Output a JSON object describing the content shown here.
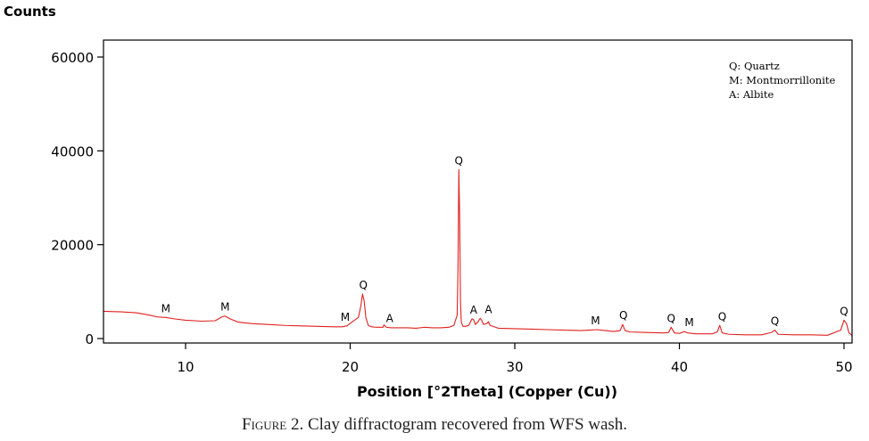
{
  "chart_data": {
    "type": "line",
    "ylabel": "Counts",
    "xlabel": "Position [°2Theta] (Copper (Cu))",
    "xlim": [
      5,
      50.8
    ],
    "ylim": [
      0,
      62000
    ],
    "x_ticks": [
      10,
      20,
      30,
      40,
      50
    ],
    "y_ticks": [
      0,
      20000,
      40000,
      60000
    ],
    "grid": false,
    "line_color": "#e0201e",
    "series": [
      {
        "x": [
          5,
          6,
          7,
          7.8,
          8.3,
          8.8,
          9.3,
          10,
          11,
          11.8,
          12.2,
          12.4,
          12.7,
          13.2,
          14,
          15,
          16,
          17,
          18,
          19,
          19.5,
          19.8,
          20.1,
          20.5,
          20.65,
          20.75,
          20.85,
          20.95,
          21.1,
          21.3,
          21.6,
          22,
          22.05,
          22.2,
          22.5,
          23,
          23.5,
          24,
          24.5,
          25,
          25.5,
          26,
          26.3,
          26.5,
          26.55,
          26.6,
          26.65,
          26.7,
          26.75,
          26.85,
          27,
          27.2,
          27.4,
          27.5,
          27.6,
          27.75,
          27.9,
          28.0,
          28.1,
          28.3,
          28.4,
          28.5,
          29,
          30,
          31,
          32,
          33,
          34,
          34.5,
          35,
          35.5,
          36,
          36.4,
          36.55,
          36.7,
          37,
          38,
          39,
          39.35,
          39.5,
          39.7,
          40,
          40.3,
          40.5,
          41,
          42,
          42.3,
          42.45,
          42.6,
          43,
          44,
          45,
          45.6,
          45.8,
          46,
          47,
          48,
          49,
          49.8,
          50,
          50.15,
          50.3,
          50.5,
          50.8
        ],
        "y": [
          5800,
          5700,
          5500,
          5000,
          4600,
          4500,
          4200,
          3900,
          3700,
          3800,
          4600,
          4800,
          4200,
          3500,
          3200,
          3000,
          2800,
          2700,
          2600,
          2500,
          2500,
          2700,
          3500,
          4500,
          7000,
          9500,
          8000,
          4500,
          2800,
          2500,
          2400,
          2400,
          2900,
          2400,
          2300,
          2300,
          2300,
          2200,
          2400,
          2300,
          2300,
          2400,
          2800,
          5000,
          15000,
          36000,
          26000,
          8000,
          3500,
          2600,
          2600,
          2800,
          4200,
          4000,
          3000,
          3500,
          4300,
          3800,
          3000,
          3200,
          3600,
          2800,
          2200,
          2100,
          2000,
          1900,
          1800,
          1700,
          1800,
          1900,
          1700,
          1500,
          1700,
          3000,
          1700,
          1400,
          1300,
          1200,
          1300,
          2400,
          1200,
          1100,
          1500,
          1200,
          1000,
          1000,
          1400,
          2800,
          1200,
          900,
          800,
          800,
          1300,
          1800,
          900,
          800,
          800,
          700,
          1800,
          3900,
          3200,
          1200,
          700,
          600
        ]
      }
    ],
    "annotations": [
      {
        "x": 8.8,
        "y": 4500,
        "text": "M"
      },
      {
        "x": 12.4,
        "y": 4800,
        "text": "M"
      },
      {
        "x": 19.7,
        "y": 2700,
        "text": "M"
      },
      {
        "x": 20.8,
        "y": 9500,
        "text": "Q"
      },
      {
        "x": 22.4,
        "y": 2400,
        "text": "A"
      },
      {
        "x": 26.6,
        "y": 36000,
        "text": "Q"
      },
      {
        "x": 27.5,
        "y": 4200,
        "text": "A"
      },
      {
        "x": 28.4,
        "y": 4300,
        "text": "A"
      },
      {
        "x": 34.9,
        "y": 1900,
        "text": "M"
      },
      {
        "x": 36.6,
        "y": 3000,
        "text": "Q"
      },
      {
        "x": 39.5,
        "y": 2400,
        "text": "Q"
      },
      {
        "x": 40.6,
        "y": 1500,
        "text": "M"
      },
      {
        "x": 42.6,
        "y": 2800,
        "text": "Q"
      },
      {
        "x": 45.8,
        "y": 1800,
        "text": "Q"
      },
      {
        "x": 50.0,
        "y": 3900,
        "text": "Q"
      }
    ],
    "legend_entries": [
      "Q: Quartz",
      "M: Montmorrillonite",
      "A: Albite"
    ],
    "legend_position": "top-right"
  },
  "caption": {
    "prefix": "Figure",
    "rest": " 2. Clay diffractogram recovered from WFS wash."
  }
}
